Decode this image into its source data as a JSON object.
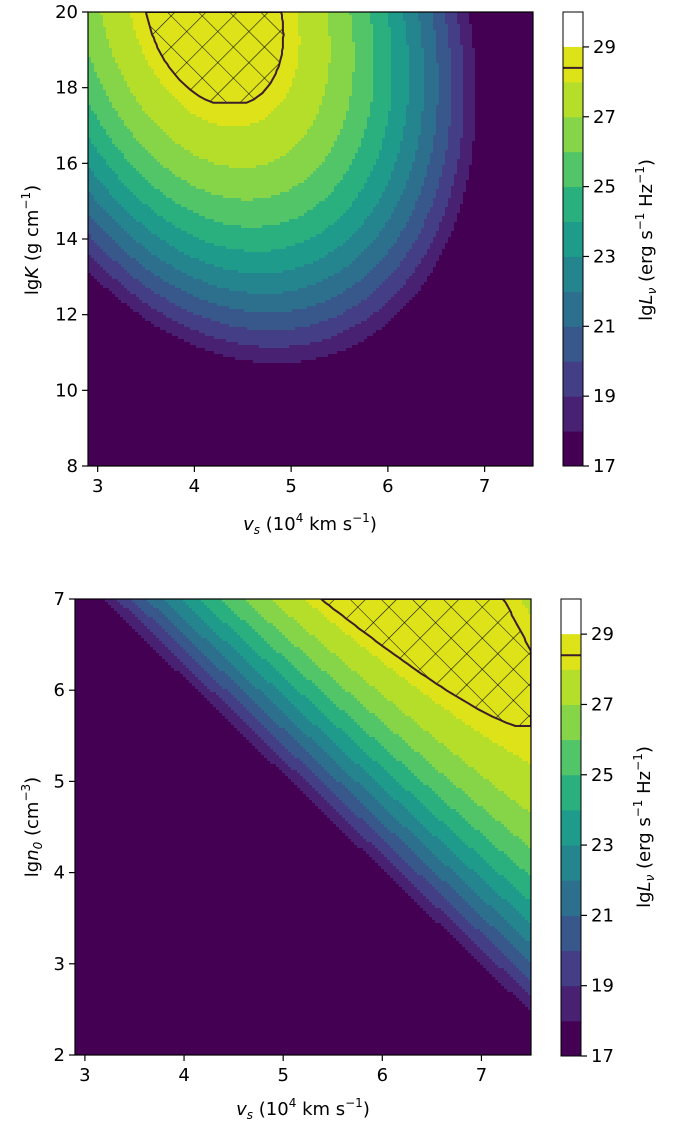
{
  "colors": {
    "levels": [
      "#440154",
      "#482173",
      "#433e85",
      "#38588c",
      "#2d708e",
      "#25858e",
      "#1e9b8a",
      "#2ab07f",
      "#52c569",
      "#86d549",
      "#b5de2b",
      "#dde318"
    ],
    "contour_line": "#3b1f2b",
    "frame": "#000000"
  },
  "colorbar": {
    "levels": [
      17,
      18,
      19,
      20,
      21,
      22,
      23,
      24,
      25,
      26,
      27,
      28,
      29,
      30
    ],
    "tick_labels": [
      "17",
      "19",
      "21",
      "23",
      "25",
      "27",
      "29"
    ],
    "marker_value": 28.4,
    "label_prefix": "lg",
    "label_var": "L",
    "label_sub": "ν",
    "label_units": " (erg s",
    "label_exp1": "−1",
    "label_mid": " Hz",
    "label_exp2": "−1",
    "label_close": ")"
  },
  "chart_data": [
    {
      "type": "contourf",
      "x_label_var": "v",
      "x_label_sub": "s",
      "x_label_units": " (10",
      "x_label_exp1": "4",
      "x_label_units2": " km s",
      "x_label_exp2": "−1",
      "x_label_close": ")",
      "y_label_prefix": "lg",
      "y_label_var": "K",
      "y_label_units": " (g cm",
      "y_label_exp": "−1",
      "y_label_close": ")",
      "xlim": [
        2.9,
        7.5
      ],
      "ylim": [
        8,
        20
      ],
      "x_ticks": [
        3,
        4,
        5,
        6,
        7
      ],
      "y_ticks": [
        8,
        10,
        12,
        14,
        16,
        18,
        20
      ],
      "field": "lgL = 29.2 - 6.8*((vs - 4.9 + 0.07*(lgK - 10))/2.05)^2 - 0.13*(lgK - 20)^2 - 0.001*(vs - 4.9)*(lgK - 20)",
      "hatched_region": "lgL > 28.4 (cross-hatched)"
    },
    {
      "type": "contourf",
      "x_label_var": "v",
      "x_label_sub": "s",
      "x_label_units": " (10",
      "x_label_exp1": "4",
      "x_label_units2": " km s",
      "x_label_exp2": "−1",
      "x_label_close": ")",
      "y_label_prefix": "lg",
      "y_label_var": "n",
      "y_label_sub": "0",
      "y_label_units": " (cm",
      "y_label_exp": "−3",
      "y_label_close": ")",
      "xlim": [
        2.9,
        7.5
      ],
      "ylim": [
        2,
        7
      ],
      "x_ticks": [
        3,
        4,
        5,
        6,
        7
      ],
      "y_ticks": [
        2,
        3,
        4,
        5,
        6,
        7
      ],
      "field": "lgL = 29.4 - 3.0*(((vs - 6.3) + 0.85*(lgn0 - 7))/1.6)^2 + 0.7*(lgn0 - 7)",
      "hatched_region": "lgL > 28.4 (cross-hatched)"
    }
  ]
}
